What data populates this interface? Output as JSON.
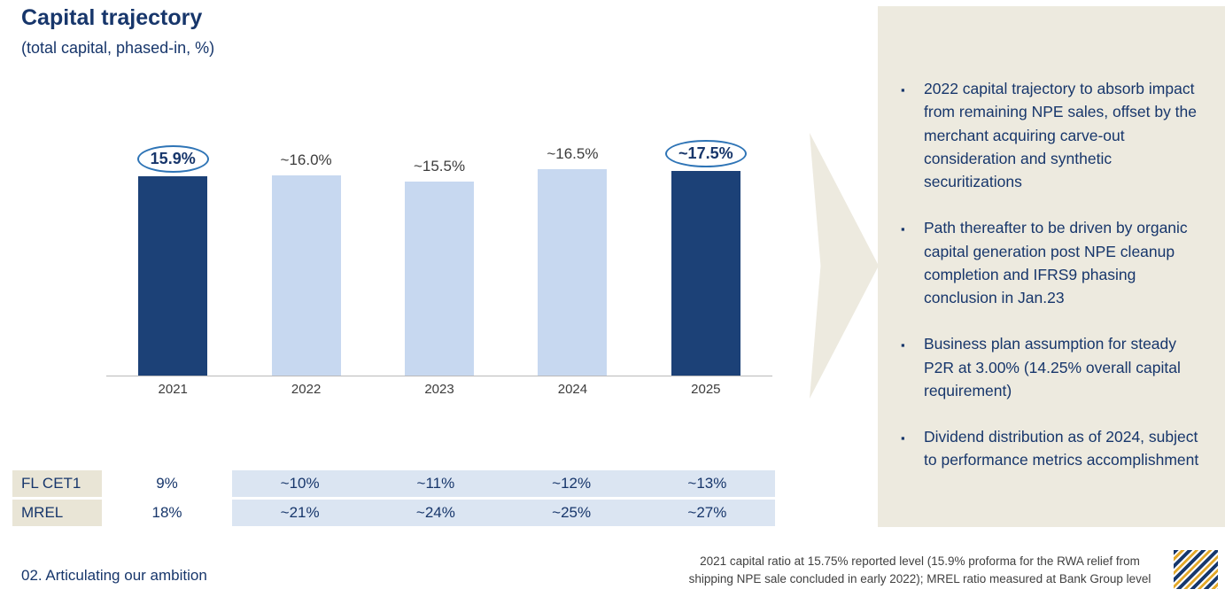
{
  "colors": {
    "navy": "#17366b",
    "bar_dark": "#1c4177",
    "bar_light": "#c7d8f0",
    "band_blue": "#dbe5f2",
    "beige": "#edeadf",
    "label_beige": "#e9e5d6",
    "circle_stroke": "#2e74b6",
    "gold": "#e3a82a"
  },
  "header": {
    "title": "Capital trajectory",
    "subtitle": "(total capital, phased-in, %)"
  },
  "chart_data": {
    "type": "bar",
    "title": "Capital trajectory",
    "subtitle": "(total capital, phased-in, %)",
    "categories": [
      "2021",
      "2022",
      "2023",
      "2024",
      "2025"
    ],
    "values": [
      15.9,
      16.0,
      15.5,
      16.5,
      17.5
    ],
    "bar_labels": [
      "15.9%",
      "~16.0%",
      "~15.5%",
      "~16.5%",
      "~17.5%"
    ],
    "emphasized": [
      true,
      false,
      false,
      false,
      true
    ],
    "circled": [
      true,
      false,
      false,
      false,
      true
    ],
    "ylim": [
      0,
      18.8
    ],
    "grid": false,
    "legend": "none",
    "xlabel": "",
    "ylabel": "total capital, phased-in, %"
  },
  "table": {
    "rows": [
      {
        "label": "FL CET1",
        "base_value": "9%",
        "projections": [
          "~10%",
          "~11%",
          "~12%",
          "~13%"
        ]
      },
      {
        "label": "MREL",
        "base_value": "18%",
        "projections": [
          "~21%",
          "~24%",
          "~25%",
          "~27%"
        ]
      }
    ]
  },
  "panel": {
    "bullet_glyph": "▪",
    "bullets": [
      "2022 capital trajectory to absorb impact from remaining NPE sales, offset by the merchant acquiring carve-out consideration and synthetic securitizations",
      "Path thereafter to be driven by organic capital generation post NPE cleanup completion and IFRS9 phasing conclusion in Jan.23",
      "Business plan assumption for steady P2R at 3.00% (14.25% overall capital requirement)",
      "Dividend distribution as of 2024, subject to performance metrics accomplishment"
    ]
  },
  "footer": {
    "section_label": "02. Articulating our ambition",
    "footnote_line1": "2021 capital ratio at 15.75% reported level (15.9% proforma for the RWA relief from",
    "footnote_line2": "shipping NPE sale concluded in early 2022); MREL ratio measured at Bank Group level"
  },
  "logo": {
    "name": "bank-diagonal-stripes-logo"
  }
}
